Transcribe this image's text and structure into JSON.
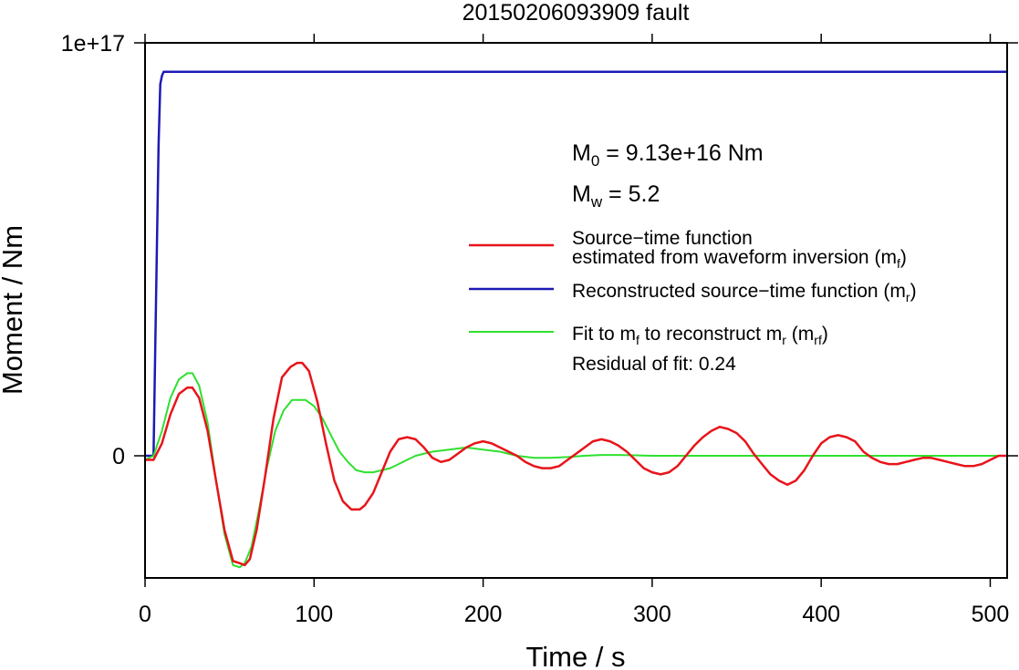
{
  "chart_data": {
    "type": "line",
    "title": "20150206093909 fault",
    "xlabel": "Time / s",
    "ylabel": "Moment / Nm",
    "xlim": [
      0,
      510
    ],
    "ylim": [
      -2.95e+16,
      1e+17
    ],
    "x_ticks": [
      0,
      100,
      200,
      300,
      400,
      500
    ],
    "x_tick_labels": [
      "0",
      "100",
      "200",
      "300",
      "400",
      "500"
    ],
    "y_ticks": [
      0,
      1e+17
    ],
    "y_tick_labels": [
      "0",
      "1e+17"
    ],
    "grid": false,
    "legend_position": "right",
    "annotations": {
      "m0": {
        "prefix": "M",
        "sub": "0",
        "suffix": " = 9.13e+16 Nm"
      },
      "mw": {
        "prefix": "M",
        "sub": "w",
        "suffix": " = 5.2"
      },
      "residual": "Residual of fit: 0.24"
    },
    "legend": [
      {
        "color": "#e8141a",
        "line1": "Source−time function",
        "line2_prefix": "estimated from waveform inversion (m",
        "line2_sub": "f",
        "line2_suffix": ")"
      },
      {
        "color": "#1d1ab5",
        "line1_prefix": "Reconstructed source−time function (m",
        "line1_sub": "r",
        "line1_suffix": ")"
      },
      {
        "color": "#2fe02f",
        "p1": "Fit to m",
        "s1": "f",
        "p2": " to reconstruct m",
        "s2": "r",
        "p3": " (m",
        "s3": "rf",
        "p4": ")"
      }
    ],
    "series": [
      {
        "color": "#e8141a",
        "x": [
          0,
          5,
          10,
          15,
          20,
          25,
          28,
          32,
          37,
          42,
          47,
          52,
          56,
          59,
          62,
          66,
          71,
          76,
          81,
          86,
          90,
          93,
          97,
          102,
          107,
          112,
          117,
          122,
          127,
          130,
          135,
          140,
          145,
          150,
          155,
          160,
          165,
          170,
          175,
          180,
          185,
          190,
          195,
          200,
          205,
          210,
          215,
          220,
          225,
          230,
          235,
          240,
          245,
          250,
          255,
          260,
          265,
          270,
          275,
          280,
          285,
          290,
          295,
          300,
          305,
          310,
          315,
          320,
          325,
          330,
          335,
          340,
          345,
          350,
          355,
          360,
          365,
          370,
          375,
          380,
          385,
          390,
          395,
          400,
          405,
          410,
          415,
          420,
          425,
          430,
          435,
          440,
          445,
          450,
          455,
          460,
          465,
          470,
          475,
          480,
          485,
          490,
          495,
          500,
          505,
          510
        ],
        "y": [
          -1000000000000000.0,
          -1000000000000000.0,
          3000000000000000.0,
          1e+16,
          1.5e+16,
          1.65e+16,
          1.65e+16,
          1.4e+16,
          6000000000000000.0,
          -6000000000000000.0,
          -1.8e+16,
          -2.55e+16,
          -2.6e+16,
          -2.65e+16,
          -2.5e+16,
          -1.8e+16,
          -5000000000000000.0,
          9000000000000000.0,
          1.9e+16,
          2.15e+16,
          2.25e+16,
          2.25e+16,
          2.05e+16,
          1.3e+16,
          3000000000000000.0,
          -6000000000000000.0,
          -1.1e+16,
          -1.3e+16,
          -1.3e+16,
          -1.2e+16,
          -9000000000000000.0,
          -4000000000000000.0,
          1000000000000000.0,
          4000000000000000.0,
          4500000000000000.0,
          4000000000000000.0,
          2000000000000000.0,
          -500000000000000.0,
          -1500000000000000.0,
          -1000000000000000.0,
          500000000000000.0,
          2000000000000000.0,
          3000000000000000.0,
          3500000000000000.0,
          3000000000000000.0,
          2000000000000000.0,
          1000000000000000.0,
          0.0,
          -1500000000000000.0,
          -2500000000000000.0,
          -3000000000000000.0,
          -3000000000000000.0,
          -2500000000000000.0,
          -1000000000000000.0,
          500000000000000.0,
          2000000000000000.0,
          3500000000000000.0,
          4000000000000000.0,
          3500000000000000.0,
          2500000000000000.0,
          1000000000000000.0,
          -1000000000000000.0,
          -3000000000000000.0,
          -4000000000000000.0,
          -4500000000000000.0,
          -4000000000000000.0,
          -2500000000000000.0,
          0.0,
          2500000000000000.0,
          4500000000000000.0,
          6000000000000000.0,
          7000000000000000.0,
          6500000000000000.0,
          5500000000000000.0,
          3500000000000000.0,
          500000000000000.0,
          -2000000000000000.0,
          -4500000000000000.0,
          -6000000000000000.0,
          -7000000000000000.0,
          -6000000000000000.0,
          -3500000000000000.0,
          0.0,
          3000000000000000.0,
          4500000000000000.0,
          5000000000000000.0,
          4500000000000000.0,
          3500000000000000.0,
          1000000000000000.0,
          -500000000000000.0,
          -1500000000000000.0,
          -2000000000000000.0,
          -2000000000000000.0,
          -1500000000000000.0,
          -1000000000000000.0,
          -500000000000000.0,
          -500000000000000.0,
          -1000000000000000.0,
          -1500000000000000.0,
          -2000000000000000.0,
          -2500000000000000.0,
          -2500000000000000.0,
          -2000000000000000.0,
          -1000000000000000.0,
          0.0,
          0.0
        ]
      },
      {
        "color": "#1d1ab5",
        "x": [
          0,
          5,
          6,
          8,
          9,
          10,
          11,
          20,
          100,
          200,
          300,
          400,
          500,
          510
        ],
        "y": [
          0,
          0,
          2.5e+16,
          7.5e+16,
          9e+16,
          9.2e+16,
          9.3e+16,
          9.3e+16,
          9.3e+16,
          9.3e+16,
          9.3e+16,
          9.3e+16,
          9.3e+16,
          9.3e+16
        ]
      },
      {
        "color": "#2fe02f",
        "x": [
          0,
          5,
          10,
          15,
          20,
          25,
          28,
          32,
          37,
          42,
          47,
          52,
          56,
          59,
          63,
          67,
          72,
          77,
          82,
          87,
          92,
          95,
          100,
          105,
          110,
          115,
          120,
          125,
          130,
          135,
          140,
          145,
          150,
          160,
          170,
          180,
          190,
          200,
          210,
          220,
          230,
          240,
          250,
          260,
          270,
          280,
          290,
          300,
          320,
          340,
          360,
          400,
          450,
          510
        ],
        "y": [
          -1000000000000000.0,
          0.0,
          6000000000000000.0,
          1.4e+16,
          1.85e+16,
          2e+16,
          2e+16,
          1.7e+16,
          8000000000000000.0,
          -6000000000000000.0,
          -1.9e+16,
          -2.65e+16,
          -2.7e+16,
          -2.6e+16,
          -2.2e+16,
          -1.4e+16,
          -3000000000000000.0,
          6000000000000000.0,
          1.1e+16,
          1.35e+16,
          1.35e+16,
          1.35e+16,
          1.2e+16,
          9000000000000000.0,
          5000000000000000.0,
          1000000000000000.0,
          -1500000000000000.0,
          -3500000000000000.0,
          -4000000000000000.0,
          -4000000000000000.0,
          -3500000000000000.0,
          -3000000000000000.0,
          -2000000000000000.0,
          0.0,
          1000000000000000.0,
          1500000000000000.0,
          2000000000000000.0,
          1500000000000000.0,
          1000000000000000.0,
          0.0,
          -500000000000000.0,
          -500000000000000.0,
          -300000000000000.0,
          0.0,
          200000000000000.0,
          200000000000000.0,
          100000000000000.0,
          0.0,
          0.0,
          0.0,
          0.0,
          0.0,
          0.0,
          0.0
        ]
      }
    ]
  }
}
